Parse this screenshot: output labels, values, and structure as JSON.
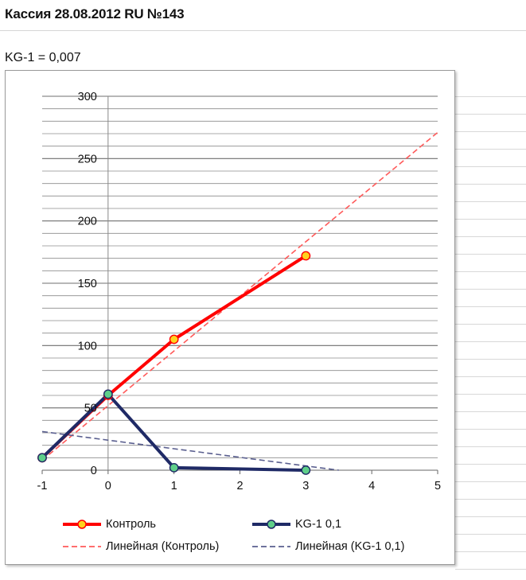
{
  "header": {
    "title": "Кассия 28.08.2012 RU №143",
    "kg_note": "KG-1 = 0,007"
  },
  "chart_data": {
    "type": "line",
    "title": "",
    "xlabel": "",
    "ylabel": "",
    "xlim": [
      -1,
      5
    ],
    "ylim": [
      0,
      300
    ],
    "x_ticks": [
      "-1",
      "0",
      "1",
      "2",
      "3",
      "4",
      "5"
    ],
    "y_ticks": [
      "0",
      "50",
      "100",
      "150",
      "200",
      "250",
      "300"
    ],
    "grid": true,
    "legend_position": "bottom",
    "series": [
      {
        "name": "Контроль",
        "x": [
          -1,
          0,
          1,
          3
        ],
        "y": [
          10,
          60,
          105,
          172
        ],
        "color": "#ff0000",
        "marker_color": "#ffd21f"
      },
      {
        "name": "KG-1 0,1",
        "x": [
          -1,
          0,
          1,
          3
        ],
        "y": [
          10,
          61,
          2,
          0
        ],
        "color": "#1f2a66",
        "marker_color": "#5fcf8a"
      }
    ],
    "trendlines": [
      {
        "name": "Линейная (Контроль)",
        "x": [
          -1,
          5
        ],
        "y": [
          8,
          271
        ],
        "color": "#ff5a5a"
      },
      {
        "name": "Линейная (KG-1 0,1)",
        "x": [
          -1,
          3.5
        ],
        "y": [
          31,
          0
        ],
        "color": "#5a5f8f"
      }
    ]
  }
}
